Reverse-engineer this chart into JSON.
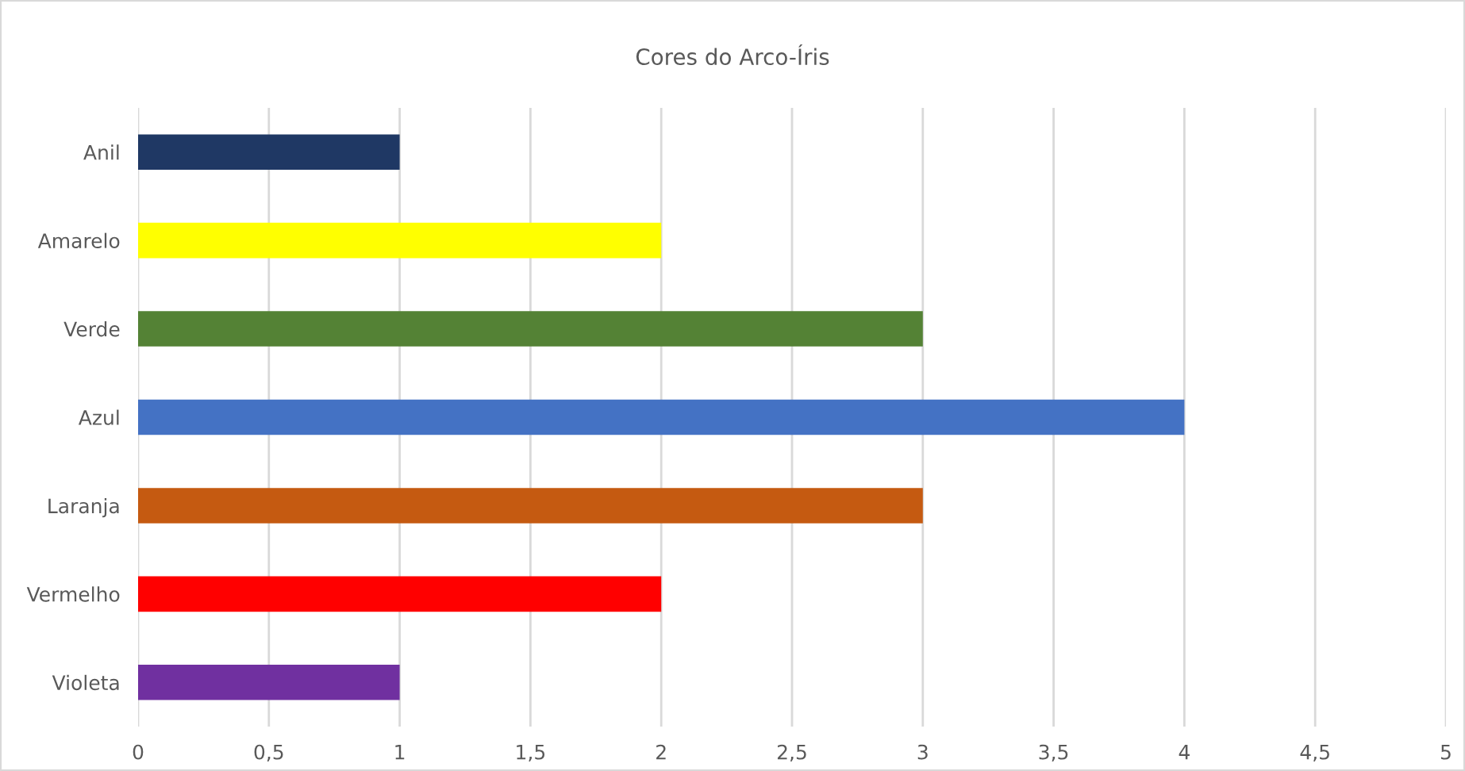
{
  "chart_data": {
    "type": "bar",
    "orientation": "horizontal",
    "title": "Cores do Arco-Íris",
    "categories": [
      "Anil",
      "Amarelo",
      "Verde",
      "Azul",
      "Laranja",
      "Vermelho",
      "Violeta"
    ],
    "values": [
      1,
      2,
      3,
      4,
      3,
      2,
      1
    ],
    "colors": [
      "#1f3864",
      "#ffff00",
      "#548235",
      "#4472c4",
      "#c55a11",
      "#ff0000",
      "#7030a0"
    ],
    "xlim": [
      0,
      5
    ],
    "xticks": [
      0,
      {
        "value": 0.5,
        "label": "0,5"
      },
      1,
      {
        "value": 1.5,
        "label": "1,5"
      },
      2,
      {
        "value": 2.5,
        "label": "2,5"
      },
      3,
      {
        "value": 3.5,
        "label": "3,5"
      },
      4,
      {
        "value": 4.5,
        "label": "4,5"
      },
      5
    ],
    "grid": "x",
    "legend": false
  }
}
